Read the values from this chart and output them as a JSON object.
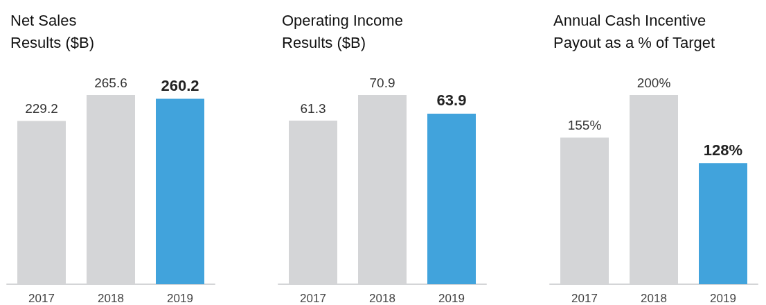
{
  "chart_data": [
    {
      "type": "bar",
      "title": "Net Sales\nResults ($B)",
      "categories": [
        "2017",
        "2018",
        "2019"
      ],
      "values": [
        229.2,
        265.6,
        260.2
      ],
      "colors": [
        "#d4d5d7",
        "#d4d5d7",
        "#41a3dc"
      ],
      "data_labels": true
    },
    {
      "type": "bar",
      "title": "Operating Income\nResults ($B)",
      "categories": [
        "2017",
        "2018",
        "2019"
      ],
      "values": [
        61.3,
        70.9,
        63.9
      ],
      "colors": [
        "#d4d5d7",
        "#d4d5d7",
        "#41a3dc"
      ],
      "data_labels": true
    },
    {
      "type": "bar",
      "title": "Annual Cash Incentive\nPayout as a % of Target",
      "categories": [
        "2017",
        "2018",
        "2019"
      ],
      "values": [
        155,
        200,
        128
      ],
      "value_labels": [
        "155%",
        "200%",
        "128%"
      ],
      "colors": [
        "#d4d5d7",
        "#d4d5d7",
        "#41a3dc"
      ]
    }
  ]
}
